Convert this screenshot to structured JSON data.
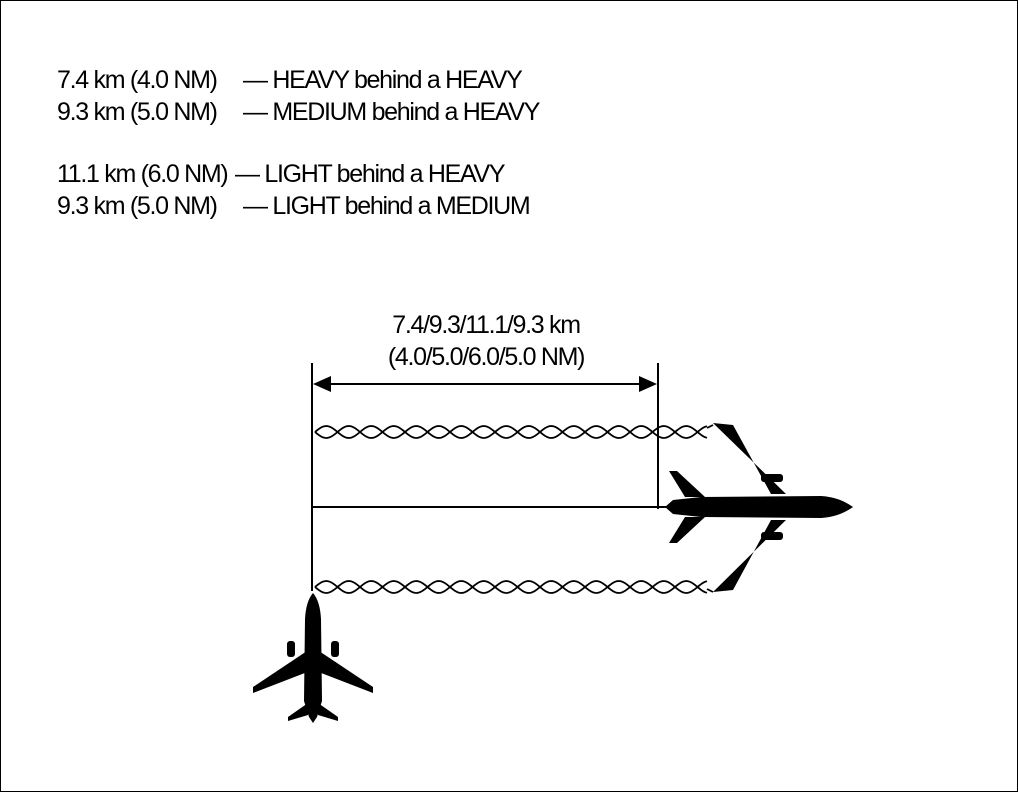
{
  "separation_rules": [
    {
      "distance": "7.4 km (4.0 NM)",
      "description": "— HEAVY behind a HEAVY"
    },
    {
      "distance": "9.3 km (5.0 NM)",
      "description": "— MEDIUM behind a HEAVY"
    },
    {
      "distance": "11.1 km (6.0 NM)",
      "description": "— LIGHT behind a HEAVY"
    },
    {
      "distance": "9.3 km (5.0 NM)",
      "description": "— LIGHT behind a MEDIUM"
    }
  ],
  "dimension": {
    "km": "7.4/9.3/11.1/9.3 km",
    "nm": "(4.0/5.0/6.0/5.0 NM)"
  },
  "colors": {
    "ink": "#000000",
    "background": "#ffffff"
  },
  "icons": {
    "leading_aircraft": "airplane-heavy-icon",
    "following_aircraft": "airplane-following-icon"
  }
}
